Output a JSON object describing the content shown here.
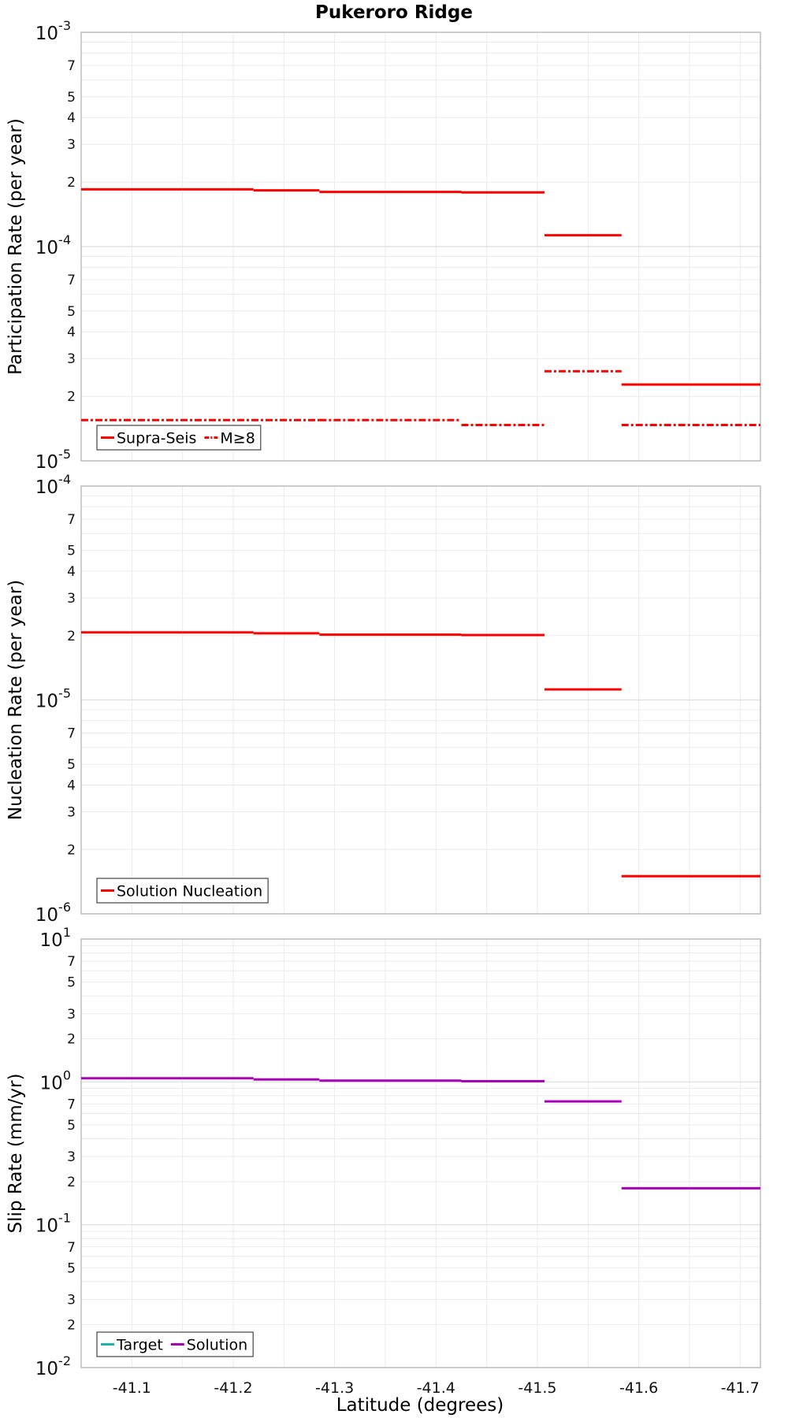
{
  "title": "Pukeroro Ridge",
  "xlabel": "Latitude (degrees)",
  "x_ticks": [
    "-41.1",
    "-41.2",
    "-41.3",
    "-41.4",
    "-41.5",
    "-41.6",
    "-41.7"
  ],
  "colors": {
    "red": "#ff0000",
    "target": "#20b2aa",
    "solution": "#aa00bb",
    "grid": "#ebebeb",
    "frame": "#bdbdbd"
  },
  "chart_data": [
    {
      "type": "line",
      "scale": "log",
      "ylabel": "Participation Rate (per year)",
      "ylim": [
        1e-05,
        0.001
      ],
      "xlim": [
        -41.05,
        -41.72
      ],
      "major_ticks": [
        {
          "value": 1e-05,
          "base": "10",
          "exp": "-5"
        },
        {
          "value": 0.0001,
          "base": "10",
          "exp": "-4"
        },
        {
          "value": 0.001,
          "base": "10",
          "exp": "-3"
        }
      ],
      "legend": [
        {
          "label": "Supra-Seis",
          "color": "#ff0000",
          "dash": "solid"
        },
        {
          "label": "M≥8",
          "color": "#ff0000",
          "dash": "dashdot"
        }
      ],
      "series": [
        {
          "name": "Supra-Seis",
          "color": "#ff0000",
          "dash": "solid",
          "segments": [
            {
              "x0": -41.05,
              "x1": -41.15,
              "y": 0.000185
            },
            {
              "x0": -41.15,
              "x1": -41.22,
              "y": 0.000185
            },
            {
              "x0": -41.22,
              "x1": -41.285,
              "y": 0.000183
            },
            {
              "x0": -41.285,
              "x1": -41.35,
              "y": 0.00018
            },
            {
              "x0": -41.35,
              "x1": -41.425,
              "y": 0.00018
            },
            {
              "x0": -41.425,
              "x1": -41.507,
              "y": 0.000179
            },
            {
              "x0": -41.507,
              "x1": -41.583,
              "y": 0.000113
            },
            {
              "x0": -41.583,
              "x1": -41.65,
              "y": 2.27e-05
            },
            {
              "x0": -41.65,
              "x1": -41.72,
              "y": 2.27e-05
            }
          ]
        },
        {
          "name": "M≥8",
          "color": "#ff0000",
          "dash": "dashdot",
          "segments": [
            {
              "x0": -41.05,
              "x1": -41.285,
              "y": 1.55e-05
            },
            {
              "x0": -41.285,
              "x1": -41.425,
              "y": 1.55e-05
            },
            {
              "x0": -41.425,
              "x1": -41.507,
              "y": 1.47e-05
            },
            {
              "x0": -41.507,
              "x1": -41.583,
              "y": 2.62e-05
            },
            {
              "x0": -41.583,
              "x1": -41.72,
              "y": 1.47e-05
            }
          ]
        }
      ]
    },
    {
      "type": "line",
      "scale": "log",
      "ylabel": "Nucleation Rate (per year)",
      "ylim": [
        1e-06,
        0.0001
      ],
      "xlim": [
        -41.05,
        -41.72
      ],
      "major_ticks": [
        {
          "value": 1e-06,
          "base": "10",
          "exp": "-6"
        },
        {
          "value": 1e-05,
          "base": "10",
          "exp": "-5"
        },
        {
          "value": 0.0001,
          "base": "10",
          "exp": "-4"
        }
      ],
      "legend": [
        {
          "label": "Solution Nucleation",
          "color": "#ff0000",
          "dash": "solid"
        }
      ],
      "series": [
        {
          "name": "Solution Nucleation",
          "color": "#ff0000",
          "dash": "solid",
          "segments": [
            {
              "x0": -41.05,
              "x1": -41.15,
              "y": 2.07e-05
            },
            {
              "x0": -41.15,
              "x1": -41.22,
              "y": 2.07e-05
            },
            {
              "x0": -41.22,
              "x1": -41.285,
              "y": 2.05e-05
            },
            {
              "x0": -41.285,
              "x1": -41.35,
              "y": 2.02e-05
            },
            {
              "x0": -41.35,
              "x1": -41.425,
              "y": 2.02e-05
            },
            {
              "x0": -41.425,
              "x1": -41.507,
              "y": 2.01e-05
            },
            {
              "x0": -41.507,
              "x1": -41.583,
              "y": 1.12e-05
            },
            {
              "x0": -41.583,
              "x1": -41.65,
              "y": 1.5e-06
            },
            {
              "x0": -41.65,
              "x1": -41.72,
              "y": 1.5e-06
            }
          ]
        }
      ]
    },
    {
      "type": "line",
      "scale": "log",
      "ylabel": "Slip Rate (mm/yr)",
      "ylim": [
        0.01,
        10
      ],
      "xlim": [
        -41.05,
        -41.72
      ],
      "major_ticks": [
        {
          "value": 0.01,
          "base": "10",
          "exp": "-2"
        },
        {
          "value": 0.1,
          "base": "10",
          "exp": "-1"
        },
        {
          "value": 1,
          "base": "10",
          "exp": "0"
        },
        {
          "value": 10,
          "base": "10",
          "exp": "1"
        }
      ],
      "legend": [
        {
          "label": "Target",
          "color": "#20b2aa",
          "dash": "solid"
        },
        {
          "label": "Solution",
          "color": "#aa00bb",
          "dash": "solid"
        }
      ],
      "series": [
        {
          "name": "Solution",
          "color": "#aa00bb",
          "dash": "solid",
          "segments": [
            {
              "x0": -41.05,
              "x1": -41.15,
              "y": 1.06
            },
            {
              "x0": -41.15,
              "x1": -41.22,
              "y": 1.06
            },
            {
              "x0": -41.22,
              "x1": -41.285,
              "y": 1.04
            },
            {
              "x0": -41.285,
              "x1": -41.35,
              "y": 1.02
            },
            {
              "x0": -41.35,
              "x1": -41.425,
              "y": 1.02
            },
            {
              "x0": -41.425,
              "x1": -41.507,
              "y": 1.01
            },
            {
              "x0": -41.507,
              "x1": -41.583,
              "y": 0.73
            },
            {
              "x0": -41.583,
              "x1": -41.65,
              "y": 0.18
            },
            {
              "x0": -41.65,
              "x1": -41.72,
              "y": 0.18
            }
          ]
        }
      ]
    }
  ]
}
